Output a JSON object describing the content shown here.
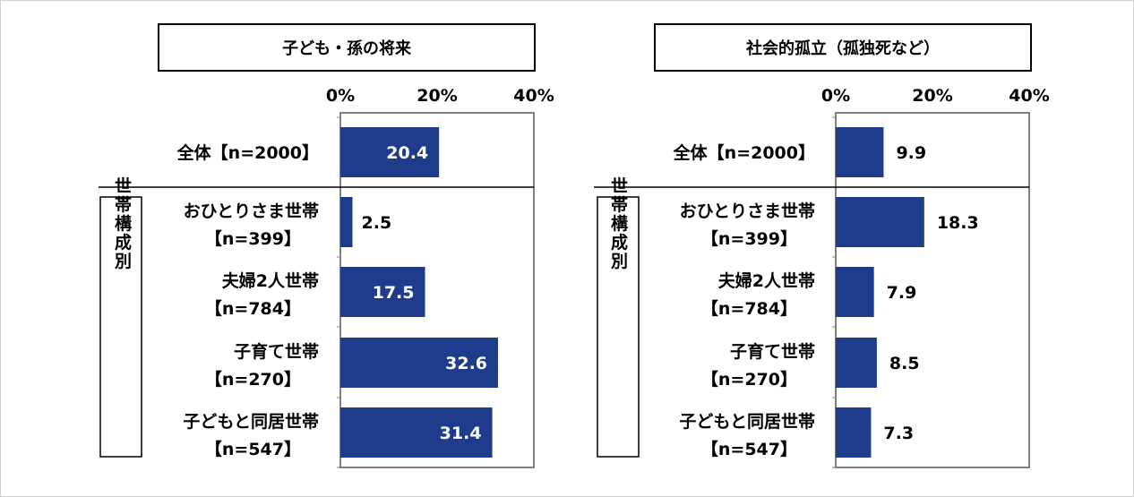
{
  "chart_data": [
    {
      "type": "bar",
      "orientation": "horizontal",
      "title": "子ども・孫の将来",
      "xlim": [
        0,
        40
      ],
      "ticks": [
        "0%",
        "20%",
        "40%"
      ],
      "group_label": "世帯構成別",
      "categories": [
        {
          "line1": "全体【n=2000】",
          "line2": ""
        },
        {
          "line1": "おひとりさま世帯",
          "line2": "【n=399】"
        },
        {
          "line1": "夫婦2人世帯",
          "line2": "【n=784】"
        },
        {
          "line1": "子育て世帯",
          "line2": "【n=270】"
        },
        {
          "line1": "子どもと同居世帯",
          "line2": "【n=547】"
        }
      ],
      "values": [
        20.4,
        2.5,
        17.5,
        32.6,
        31.4
      ],
      "value_labels": [
        "20.4",
        "2.5",
        "17.5",
        "32.6",
        "31.4"
      ],
      "bar_color": "#1f3b8c"
    },
    {
      "type": "bar",
      "orientation": "horizontal",
      "title": "社会的孤立（孤独死など）",
      "xlim": [
        0,
        40
      ],
      "ticks": [
        "0%",
        "20%",
        "40%"
      ],
      "group_label": "世帯構成別",
      "categories": [
        {
          "line1": "全体【n=2000】",
          "line2": ""
        },
        {
          "line1": "おひとりさま世帯",
          "line2": "【n=399】"
        },
        {
          "line1": "夫婦2人世帯",
          "line2": "【n=784】"
        },
        {
          "line1": "子育て世帯",
          "line2": "【n=270】"
        },
        {
          "line1": "子どもと同居世帯",
          "line2": "【n=547】"
        }
      ],
      "values": [
        9.9,
        18.3,
        7.9,
        8.5,
        7.3
      ],
      "value_labels": [
        "9.9",
        "18.3",
        "7.9",
        "8.5",
        "7.3"
      ],
      "bar_color": "#1f3b8c"
    }
  ]
}
